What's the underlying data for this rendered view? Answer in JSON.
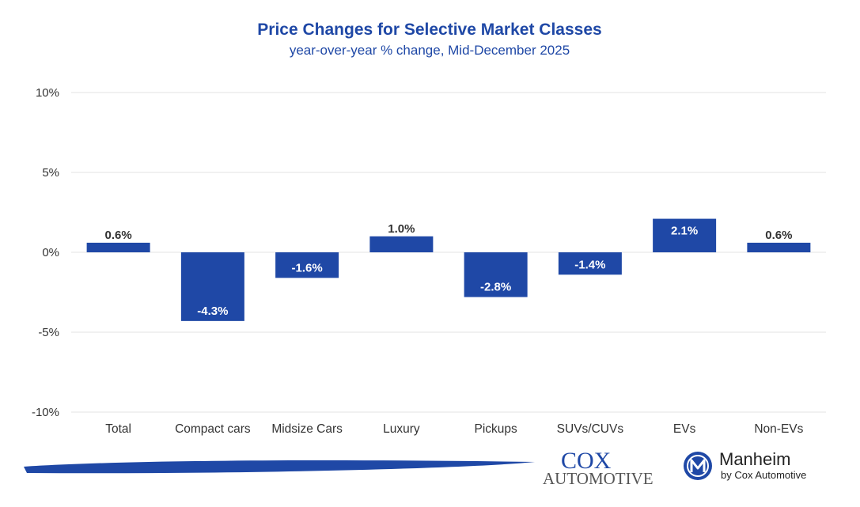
{
  "chart_data": {
    "type": "bar",
    "title": "Price Changes for Selective Market Classes",
    "subtitle": "year-over-year % change, Mid-December 2025",
    "categories": [
      "Total",
      "Compact cars",
      "Midsize Cars",
      "Luxury",
      "Pickups",
      "SUVs/CUVs",
      "EVs",
      "Non-EVs"
    ],
    "values": [
      0.6,
      -4.3,
      -1.6,
      1.0,
      -2.8,
      -1.4,
      2.1,
      0.6
    ],
    "data_labels": [
      "0.6%",
      "-4.3%",
      "-1.6%",
      "1.0%",
      "-2.8%",
      "-1.4%",
      "2.1%",
      "0.6%"
    ],
    "ylim": [
      -10,
      10
    ],
    "yticks": [
      10,
      5,
      0,
      -5,
      -10
    ],
    "ytick_labels": [
      "10%",
      "5%",
      "0%",
      "-5%",
      "-10%"
    ],
    "grid": true,
    "legend": "none",
    "bar_color": "#1f48a6"
  },
  "branding": {
    "cox_top": "COX",
    "cox_bottom": "AUTOMOTIVE",
    "manheim_name": "Manheim",
    "manheim_tagline": "by Cox Automotive",
    "manheim_icon": "manheim-m-icon",
    "brand_color": "#1f48a6"
  }
}
